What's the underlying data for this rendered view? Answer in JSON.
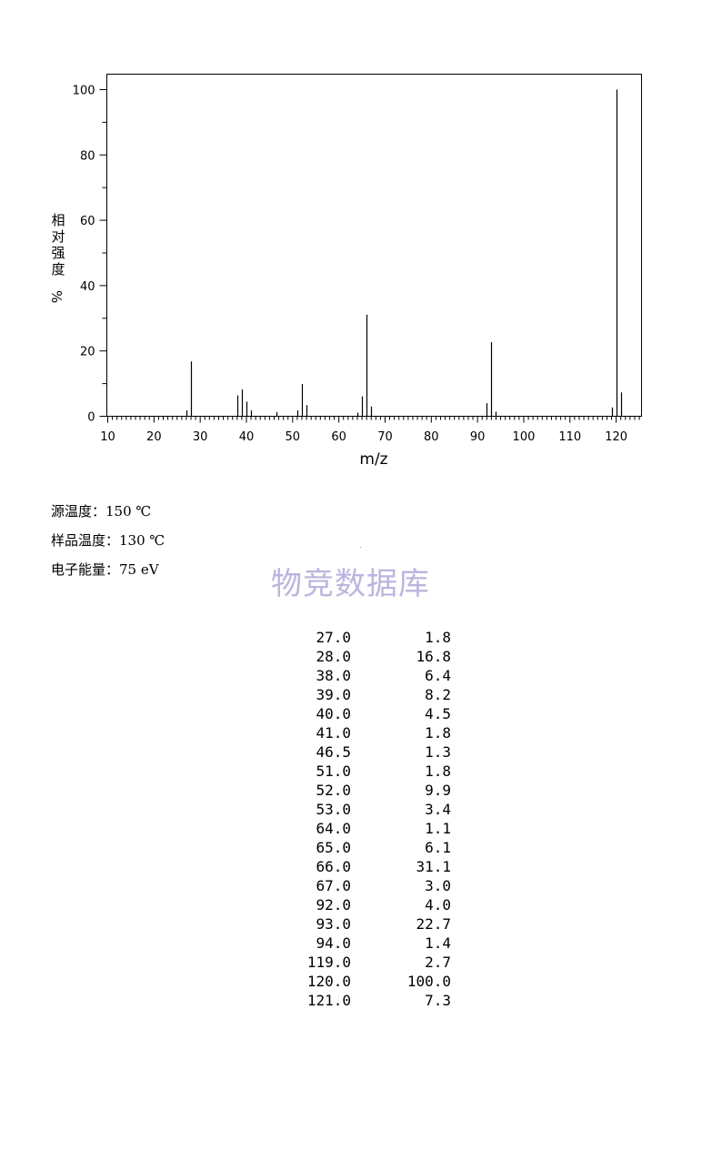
{
  "chart_data": {
    "type": "bar",
    "title": "",
    "xlabel": "m/z",
    "ylabel": "相对强度 %",
    "xlim": [
      10,
      126
    ],
    "ylim": [
      0,
      100
    ],
    "xticks_labeled": [
      10,
      20,
      30,
      40,
      50,
      60,
      70,
      80,
      90,
      100,
      110,
      120
    ],
    "yticks_labeled": [
      0,
      20,
      40,
      60,
      80,
      100
    ],
    "grid": false,
    "x": [
      27.0,
      28.0,
      38.0,
      39.0,
      40.0,
      41.0,
      46.5,
      51.0,
      52.0,
      53.0,
      64.0,
      65.0,
      66.0,
      67.0,
      92.0,
      93.0,
      94.0,
      119.0,
      120.0,
      121.0
    ],
    "values": [
      1.8,
      16.8,
      6.4,
      8.2,
      4.5,
      1.8,
      1.3,
      1.8,
      9.9,
      3.4,
      1.1,
      6.1,
      31.1,
      3.0,
      4.0,
      22.7,
      1.4,
      2.7,
      100.0,
      7.3
    ]
  },
  "conditions": {
    "source_temp": "源温度：150 ℃",
    "sample_temp": "样品温度：130 ℃",
    "electron_energy": "电子能量：75 eV"
  },
  "watermark": "物竞数据库",
  "peak_table": [
    {
      "mz": "27.0",
      "intensity": "1.8"
    },
    {
      "mz": "28.0",
      "intensity": "16.8"
    },
    {
      "mz": "38.0",
      "intensity": "6.4"
    },
    {
      "mz": "39.0",
      "intensity": "8.2"
    },
    {
      "mz": "40.0",
      "intensity": "4.5"
    },
    {
      "mz": "41.0",
      "intensity": "1.8"
    },
    {
      "mz": "46.5",
      "intensity": "1.3"
    },
    {
      "mz": "51.0",
      "intensity": "1.8"
    },
    {
      "mz": "52.0",
      "intensity": "9.9"
    },
    {
      "mz": "53.0",
      "intensity": "3.4"
    },
    {
      "mz": "64.0",
      "intensity": "1.1"
    },
    {
      "mz": "65.0",
      "intensity": "6.1"
    },
    {
      "mz": "66.0",
      "intensity": "31.1"
    },
    {
      "mz": "67.0",
      "intensity": "3.0"
    },
    {
      "mz": "92.0",
      "intensity": "4.0"
    },
    {
      "mz": "93.0",
      "intensity": "22.7"
    },
    {
      "mz": "94.0",
      "intensity": "1.4"
    },
    {
      "mz": "119.0",
      "intensity": "2.7"
    },
    {
      "mz": "120.0",
      "intensity": "100.0"
    },
    {
      "mz": "121.0",
      "intensity": "7.3"
    }
  ]
}
